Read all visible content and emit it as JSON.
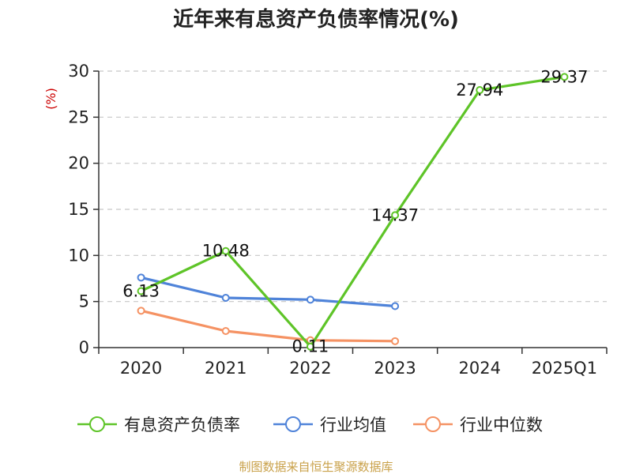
{
  "chart_data": {
    "type": "line",
    "title": "近年来有息资产负债率情况(%)",
    "ylabel": "(%)",
    "categories": [
      "2020",
      "2021",
      "2022",
      "2023",
      "2024",
      "2025Q1"
    ],
    "ylim": [
      0,
      30
    ],
    "yticks": [
      0,
      5,
      10,
      15,
      20,
      25,
      30
    ],
    "grid": true,
    "legend_position": "bottom",
    "series": [
      {
        "name": "有息资产负债率",
        "color": "#5ec428",
        "values": [
          6.13,
          10.48,
          0.11,
          14.37,
          27.94,
          29.37
        ],
        "labels": [
          "6.13",
          "10.48",
          "0.11",
          "14.37",
          "27.94",
          "29.37"
        ]
      },
      {
        "name": "行业均值",
        "color": "#4f83d9",
        "values": [
          7.6,
          5.4,
          5.2,
          4.5,
          null,
          null
        ]
      },
      {
        "name": "行业中位数",
        "color": "#f59263",
        "values": [
          4.0,
          1.8,
          0.8,
          0.7,
          null,
          null
        ]
      }
    ]
  },
  "source": "制图数据来自恒生聚源数据库"
}
